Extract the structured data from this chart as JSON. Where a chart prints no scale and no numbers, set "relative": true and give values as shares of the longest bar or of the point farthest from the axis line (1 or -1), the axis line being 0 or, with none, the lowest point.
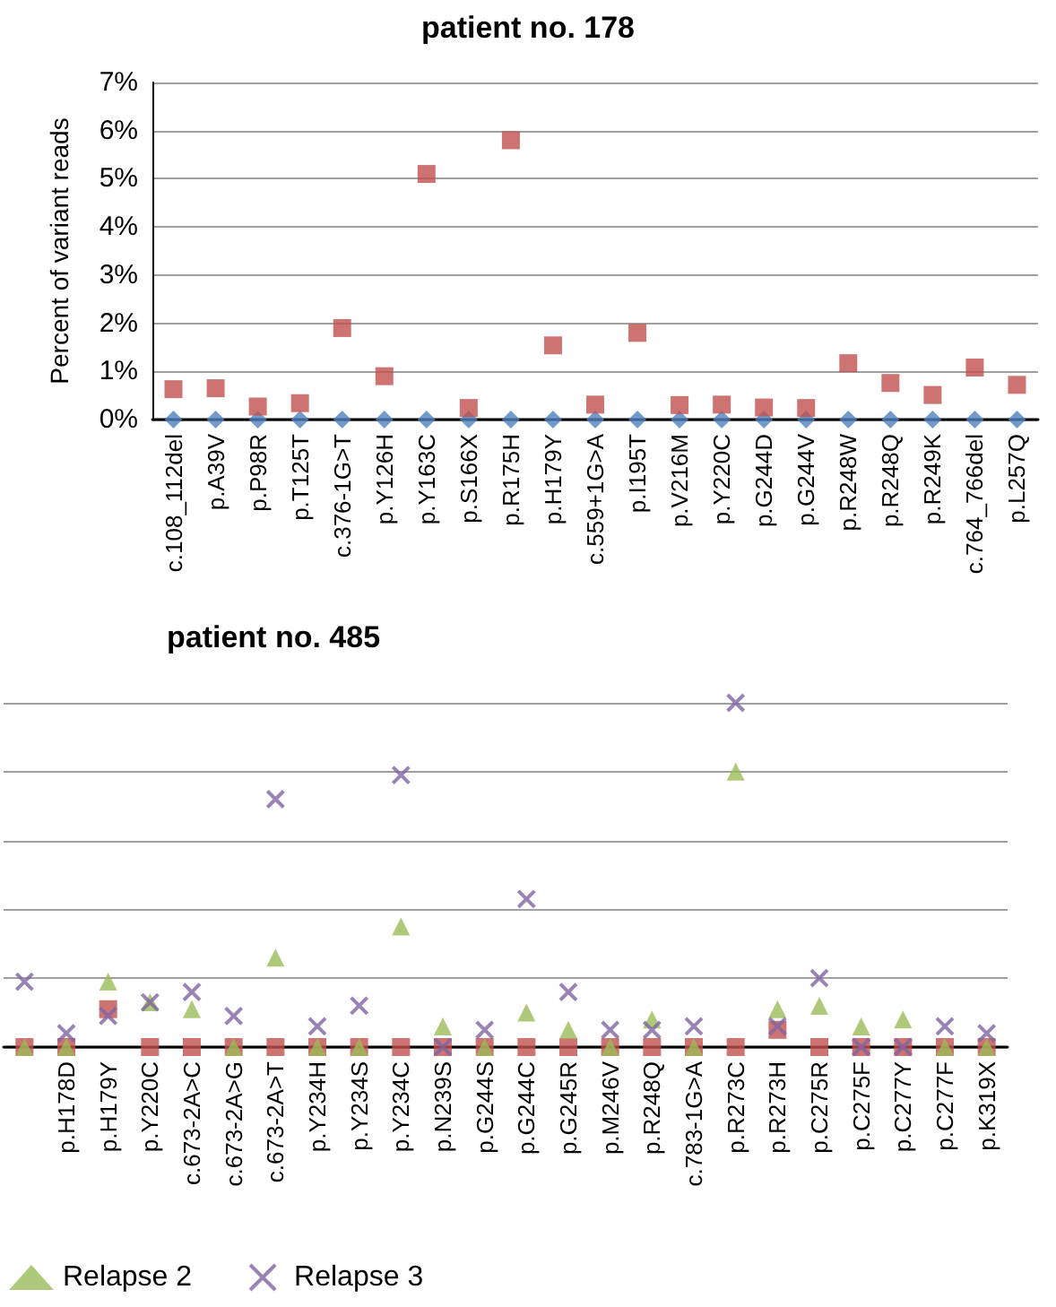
{
  "chart_data": [
    {
      "type": "scatter",
      "title": "patient no. 178",
      "ylabel": "Percent of variant reads",
      "categories": [
        "c.108_112del",
        "p.A39V",
        "p.P98R",
        "p.T125T",
        "c.376-1G>T",
        "p.Y126H",
        "p.Y163C",
        "p.S166X",
        "p.R175H",
        "p.H179Y",
        "c.559+1G>A",
        "p.I195T",
        "p.V216M",
        "p.Y220C",
        "p.G244D",
        "p.G244V",
        "p.R248W",
        "p.R248Q",
        "p.R249K",
        "c.764_766del",
        "p.L257Q"
      ],
      "series": [
        {
          "color": "#4f81bd",
          "marker": "diamond",
          "values": [
            0,
            0,
            0,
            0,
            0,
            0,
            0,
            0,
            0,
            0,
            0,
            0,
            0,
            0,
            0,
            0,
            0,
            0,
            0,
            0,
            0
          ]
        },
        {
          "color": "#c0504d",
          "marker": "square",
          "values": [
            0.63,
            0.65,
            0.27,
            0.34,
            1.9,
            0.9,
            5.1,
            0.24,
            5.8,
            1.54,
            0.31,
            1.8,
            0.3,
            0.31,
            0.25,
            0.24,
            1.17,
            0.76,
            0.51,
            1.08,
            0.72
          ]
        }
      ],
      "ylim": [
        0,
        7
      ],
      "yticks": [
        {
          "value": 0,
          "label": "0%"
        },
        {
          "value": 1,
          "label": "1%"
        },
        {
          "value": 2,
          "label": "2%"
        },
        {
          "value": 3,
          "label": "3%"
        },
        {
          "value": 4,
          "label": "4%"
        },
        {
          "value": 5,
          "label": "5%"
        },
        {
          "value": 6,
          "label": "6%"
        },
        {
          "value": 7,
          "label": "7%"
        }
      ],
      "grid": "y",
      "legend": false
    },
    {
      "type": "scatter",
      "title": "patient no. 485",
      "relative": true,
      "categories": [
        null,
        "p.H178D",
        "p.H179Y",
        "p.Y220C",
        "c.673-2A>C",
        "c.673-2A>G",
        "c.673-2A>T",
        "p.Y234H",
        "p.Y234S",
        "p.Y234C",
        "p.N239S",
        "p.G244S",
        "p.G244C",
        "p.G245R",
        "p.M246V",
        "p.R248Q",
        "c.783-1G>A",
        "p.R273C",
        "p.R273H",
        "p.C275R",
        "p.C275F",
        "p.C277Y",
        "p.C277F",
        "p.K319X"
      ],
      "series": [
        {
          "color": "#c0504d",
          "marker": "square",
          "values": [
            0,
            0,
            0.11,
            0,
            0,
            0,
            0,
            0,
            0,
            0,
            0,
            0,
            0,
            0,
            0,
            0,
            0,
            0,
            0.05,
            0,
            0,
            0,
            0,
            0
          ]
        },
        {
          "name": "Relapse 2",
          "color": "#9bbb59",
          "marker": "triangle",
          "values": [
            0,
            0,
            0.19,
            0.13,
            0.11,
            0,
            0.26,
            0,
            0,
            0.35,
            0.06,
            0,
            0.1,
            0.05,
            0,
            0.08,
            0,
            0.8,
            0.11,
            0.12,
            0.06,
            0.08,
            0,
            0
          ]
        },
        {
          "name": "Relapse 3",
          "color": "#8064a2",
          "marker": "cross",
          "values": [
            0.19,
            0.04,
            0.09,
            0.13,
            0.16,
            0.09,
            0.72,
            0.06,
            0.12,
            0.79,
            0,
            0.05,
            0.43,
            0.16,
            0.05,
            0.05,
            0.06,
            1,
            0.06,
            0.2,
            0,
            0,
            0.06,
            0.04
          ]
        }
      ],
      "grid": "y",
      "legend": "bottom left"
    }
  ]
}
